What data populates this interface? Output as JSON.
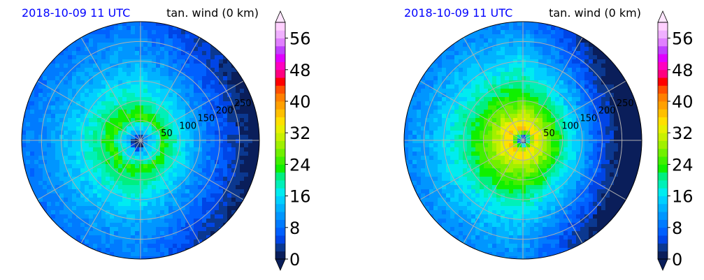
{
  "chart_data": [
    {
      "type": "heatmap",
      "projection": "polar",
      "title_left": "2018-10-09 11 UTC",
      "title_right": "tan. wind (0 km)",
      "radial_ticks": [
        50,
        100,
        150,
        200,
        250
      ],
      "rmax": 300,
      "grid": true,
      "colorbar": {
        "ticks": [
          0,
          8,
          16,
          24,
          32,
          40,
          48,
          56
        ],
        "vmin": 0,
        "vmax": 60,
        "extend": "both",
        "levels": [
          0,
          2,
          4,
          6,
          8,
          10,
          12,
          14,
          16,
          18,
          20,
          22,
          24,
          26,
          28,
          30,
          32,
          34,
          36,
          38,
          40,
          42,
          44,
          46,
          48,
          50,
          52,
          54,
          56,
          58,
          60
        ]
      },
      "field": {
        "center_offset": [
          -0.02,
          0.02
        ],
        "core_radius_km": 18,
        "peak_value": 22,
        "peak_radius_km": 60,
        "east_low_value": 7
      }
    },
    {
      "type": "heatmap",
      "projection": "polar",
      "title_left": "2018-10-09 11 UTC",
      "title_right": "tan. wind (0 km)",
      "radial_ticks": [
        50,
        100,
        150,
        200,
        250
      ],
      "rmax": 300,
      "grid": true,
      "colorbar": {
        "ticks": [
          0,
          8,
          16,
          24,
          32,
          40,
          48,
          56
        ],
        "vmin": 0,
        "vmax": 60,
        "extend": "both",
        "levels": [
          0,
          2,
          4,
          6,
          8,
          10,
          12,
          14,
          16,
          18,
          20,
          22,
          24,
          26,
          28,
          30,
          32,
          34,
          36,
          38,
          40,
          42,
          44,
          46,
          48,
          50,
          52,
          54,
          56,
          58,
          60
        ]
      },
      "field": {
        "center_offset": [
          0.0,
          0.0
        ],
        "core_radius_km": 12,
        "peak_value": 34,
        "peak_radius_km": 28,
        "east_low_value": 8
      }
    }
  ],
  "colors": {
    "below": "#0a1e5a",
    "above": "#ffe6ff",
    "levels": [
      "#0a1e5a",
      "#0b3890",
      "#0045e6",
      "#0060ff",
      "#007bff",
      "#0096ff",
      "#00b2ff",
      "#00d0ff",
      "#00ecf0",
      "#00f0b8",
      "#00ef80",
      "#10f000",
      "#40f000",
      "#70f000",
      "#a0f000",
      "#c8f000",
      "#e8f000",
      "#ffe000",
      "#ffc000",
      "#ffa000",
      "#ff8000",
      "#ff5000",
      "#ff0000",
      "#ff0080",
      "#ff00c0",
      "#e000ff",
      "#c040ff",
      "#e080ff",
      "#f0b0ff",
      "#ffd0ff"
    ]
  }
}
